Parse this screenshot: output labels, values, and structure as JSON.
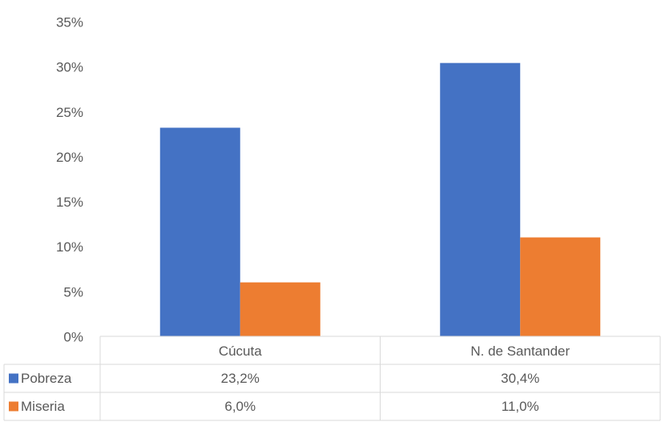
{
  "chart_data": {
    "type": "bar",
    "categories": [
      "Cúcuta",
      "N. de Santander"
    ],
    "series": [
      {
        "name": "Pobreza",
        "color": "#4472c4",
        "values": [
          23.2,
          30.4
        ],
        "value_labels": [
          "23,2%",
          "30,4%"
        ]
      },
      {
        "name": "Miseria",
        "color": "#ed7d31",
        "values": [
          6.0,
          11.0
        ],
        "value_labels": [
          "6,0%",
          "11,0%"
        ]
      }
    ],
    "ylim": [
      0,
      35
    ],
    "yticks": [
      {
        "value": 0,
        "label": "0%"
      },
      {
        "value": 5,
        "label": "5%"
      },
      {
        "value": 10,
        "label": "10%"
      },
      {
        "value": 15,
        "label": "15%"
      },
      {
        "value": 20,
        "label": "20%"
      },
      {
        "value": 25,
        "label": "25%"
      },
      {
        "value": 30,
        "label": "30%"
      },
      {
        "value": 35,
        "label": "35%"
      }
    ],
    "grid": false
  }
}
